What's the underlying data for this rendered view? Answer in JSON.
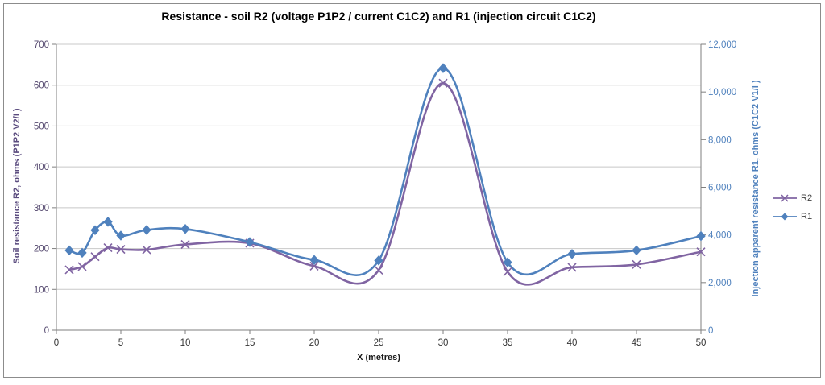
{
  "chart_data": {
    "type": "line",
    "title": "Resistance - soil R2 (voltage P1P2 / current C1C2) and R1 (injection circuit C1C2)",
    "xlabel": "X (metres)",
    "ylabel_left": "Soil resistance R2, ohms (P1P2 V2/I )",
    "ylabel_right": "Injection apparent resistance R1, ohms (C1C2 V1/I )",
    "x": [
      1,
      2,
      3,
      4,
      5,
      7,
      10,
      15,
      20,
      25,
      30,
      35,
      40,
      45,
      50
    ],
    "series": [
      {
        "name": "R2",
        "axis": "left",
        "marker": "x",
        "color": "#8064A2",
        "values": [
          148,
          156,
          180,
          202,
          198,
          197,
          210,
          213,
          157,
          147,
          605,
          143,
          154,
          161,
          192
        ]
      },
      {
        "name": "R1",
        "axis": "right",
        "marker": "diamond",
        "color": "#4F81BD",
        "values": [
          3350,
          3250,
          4200,
          4550,
          3970,
          4210,
          4250,
          3700,
          2950,
          2930,
          11000,
          2850,
          3200,
          3350,
          3950
        ]
      }
    ],
    "left_axis": {
      "min": 0,
      "max": 700,
      "tick_step": 100,
      "ticks": [
        "0",
        "100",
        "200",
        "300",
        "400",
        "500",
        "600",
        "700"
      ],
      "label_color": "#55496f"
    },
    "right_axis": {
      "min": 0,
      "max": 12000,
      "tick_step": 2000,
      "ticks": [
        "0",
        "2,000",
        "4,000",
        "6,000",
        "8,000",
        "10,000",
        "12,000"
      ],
      "label_color": "#4f81bd"
    },
    "x_axis": {
      "min": 0,
      "max": 50,
      "tick_step": 5,
      "ticks": [
        "0",
        "5",
        "10",
        "15",
        "20",
        "25",
        "30",
        "35",
        "40",
        "45",
        "50"
      ],
      "label_color": "#333333"
    },
    "legend": {
      "entries": [
        "R2",
        "R1"
      ],
      "position": "right"
    },
    "grid": true,
    "smooth_lines": true
  }
}
